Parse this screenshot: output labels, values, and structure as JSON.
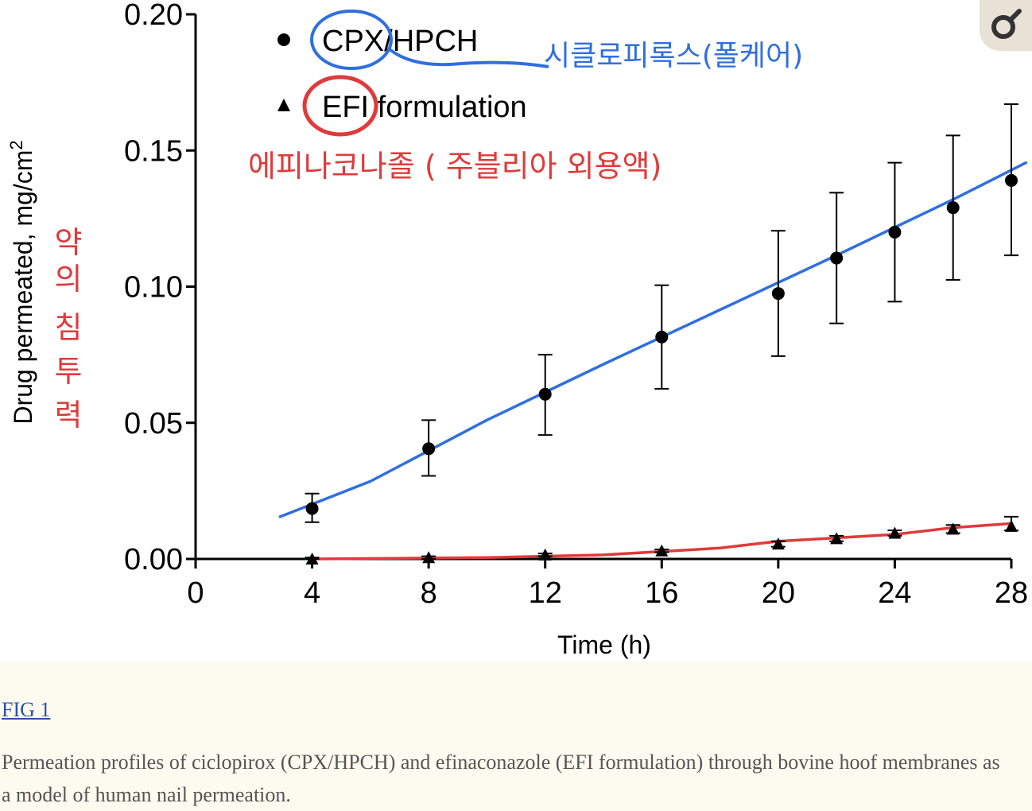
{
  "chart_data": {
    "type": "scatter",
    "xlabel": "Time (h)",
    "ylabel": "Drug permeated, mg/cm",
    "ylabel_superscript": "2",
    "xlim": [
      0,
      28
    ],
    "ylim": [
      0,
      0.2
    ],
    "x_ticks": [
      "0",
      "4",
      "8",
      "12",
      "16",
      "20",
      "24",
      "28"
    ],
    "y_ticks": [
      "0.00",
      "0.05",
      "0.10",
      "0.15",
      "0.20"
    ],
    "grid": false,
    "legend_position": "top-left",
    "series": [
      {
        "name": "CPX/HPCH",
        "marker": "circle",
        "x": [
          4,
          8,
          12,
          16,
          20,
          22,
          24,
          26,
          28
        ],
        "y": [
          0.0185,
          0.0405,
          0.0605,
          0.0815,
          0.0975,
          0.1105,
          0.12,
          0.129,
          0.139
        ],
        "err_low": [
          0.0135,
          0.0305,
          0.0455,
          0.0625,
          0.0745,
          0.0865,
          0.0945,
          0.1025,
          0.1115
        ],
        "err_high": [
          0.024,
          0.051,
          0.075,
          0.1005,
          0.1205,
          0.1345,
          0.1455,
          0.1555,
          0.167
        ]
      },
      {
        "name": "EFI formulation",
        "marker": "triangle",
        "x": [
          4,
          8,
          12,
          16,
          20,
          22,
          24,
          26,
          28
        ],
        "y": [
          0.0,
          0.0005,
          0.0015,
          0.003,
          0.0055,
          0.0075,
          0.0095,
          0.011,
          0.012
        ],
        "err_low": [
          0.0,
          0.0,
          0.001,
          0.0025,
          0.0045,
          0.0065,
          0.0085,
          0.0095,
          0.0105
        ],
        "err_high": [
          0.0005,
          0.001,
          0.002,
          0.0035,
          0.0065,
          0.0085,
          0.0105,
          0.0125,
          0.0155
        ]
      }
    ],
    "annotation_lines": [
      {
        "color": "#2f6fe0",
        "x": [
          2.9,
          6,
          10,
          14,
          18,
          22,
          26,
          28.5
        ],
        "y": [
          0.0155,
          0.0285,
          0.051,
          0.0715,
          0.0915,
          0.1115,
          0.132,
          0.1455
        ]
      },
      {
        "color": "#e03a3a",
        "x": [
          4,
          10,
          14,
          18,
          20,
          24,
          26,
          28
        ],
        "y": [
          0.0,
          0.0005,
          0.0015,
          0.004,
          0.0065,
          0.009,
          0.0115,
          0.013
        ]
      }
    ]
  },
  "legend": {
    "cpx_label": "CPX/HPCH",
    "efi_label": "EFI formulation"
  },
  "handwritten_notes": {
    "cpx_note": "시클로피록스(폴케어)",
    "efi_note": "에피나코나졸 ( 주블리아 외용액)",
    "yaxis_note_1": "약의",
    "yaxis_note_2": "침투력"
  },
  "figure": {
    "link_text": "FIG 1",
    "caption": "Permeation profiles of ciclopirox (CPX/HPCH) and efinaconazole (EFI formulation) through bovine hoof membranes as a model of human nail permeation."
  },
  "colors": {
    "annotation_blue": "#2f6fe0",
    "annotation_red": "#e03a3a",
    "page_background": "#fdfaef",
    "toolbar_button": "#e8e2d6"
  },
  "toolbar": {
    "icon": "magnifier-icon"
  }
}
